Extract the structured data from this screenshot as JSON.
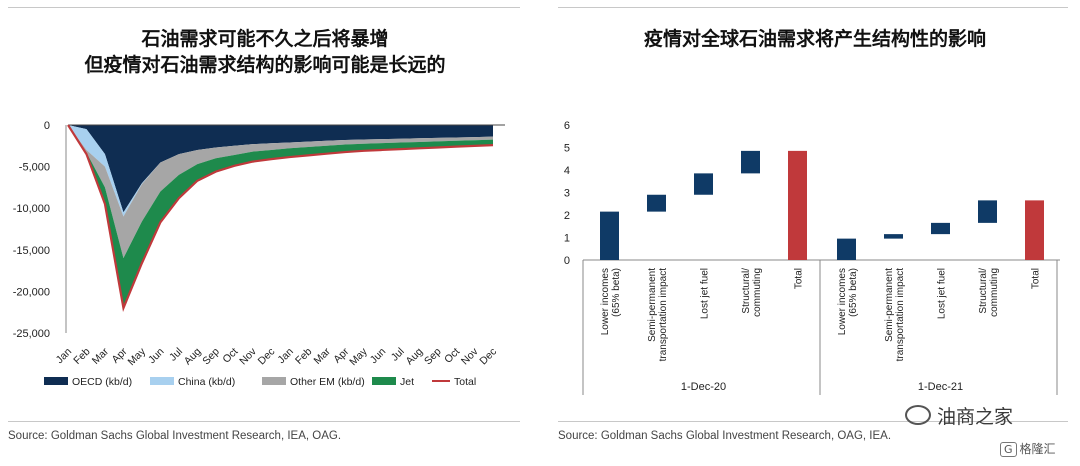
{
  "left": {
    "title_line1": "石油需求可能不久之后将暴增",
    "title_line2": "但疫情对石油需求结构的影响可能是长远的",
    "source": "Source: Goldman Sachs Global Investment Research, IEA, OAG."
  },
  "right": {
    "title": "疫情对全球石油需求将产生结构性的影响",
    "source": "Source: Goldman Sachs Global Investment Research, OAG, IEA."
  },
  "watermark": "油商之家",
  "badge": "格隆汇",
  "badge_icon": "G",
  "chart_data": [
    {
      "type": "area",
      "title": "",
      "stacked": true,
      "categories": [
        "Jan",
        "Feb",
        "Mar",
        "Apr",
        "May",
        "Jun",
        "Jul",
        "Aug",
        "Sep",
        "Oct",
        "Nov",
        "Dec",
        "Jan",
        "Feb",
        "Mar",
        "Apr",
        "May",
        "Jun",
        "Jul",
        "Aug",
        "Sep",
        "Oct",
        "Nov",
        "Dec"
      ],
      "series": [
        {
          "name": "OECD (kb/d)",
          "color": "#0f2d52",
          "values": [
            0,
            -500,
            -3500,
            -10500,
            -7000,
            -4500,
            -3500,
            -3000,
            -2700,
            -2500,
            -2300,
            -2200,
            -2100,
            -2000,
            -1900,
            -1800,
            -1750,
            -1700,
            -1650,
            -1600,
            -1550,
            -1500,
            -1450,
            -1400
          ]
        },
        {
          "name": "China (kb/d)",
          "color": "#a8d0ef",
          "values": [
            0,
            -2500,
            -1500,
            -500,
            -100,
            0,
            0,
            0,
            0,
            0,
            0,
            0,
            0,
            0,
            0,
            0,
            0,
            0,
            0,
            0,
            0,
            0,
            0,
            0
          ]
        },
        {
          "name": "Other EM (kb/d)",
          "color": "#a6a6a6",
          "values": [
            0,
            -300,
            -2500,
            -5000,
            -4500,
            -3500,
            -2500,
            -1700,
            -1300,
            -1100,
            -900,
            -800,
            -700,
            -650,
            -600,
            -550,
            -500,
            -480,
            -460,
            -440,
            -420,
            -400,
            -380,
            -360
          ]
        },
        {
          "name": "Jet",
          "color": "#1e8a4c",
          "values": [
            0,
            -200,
            -2000,
            -6000,
            -5000,
            -3700,
            -2800,
            -2000,
            -1600,
            -1300,
            -1200,
            -1100,
            -1050,
            -1000,
            -950,
            -900,
            -850,
            -820,
            -790,
            -760,
            -730,
            -700,
            -680,
            -660
          ]
        },
        {
          "name": "Total",
          "color": "#c0393b",
          "line": true,
          "values": [
            0,
            -3500,
            -9500,
            -22000,
            -16600,
            -11700,
            -8800,
            -6700,
            -5600,
            -4900,
            -4400,
            -4100,
            -3850,
            -3650,
            -3450,
            -3250,
            -3100,
            -3000,
            -2900,
            -2800,
            -2700,
            -2600,
            -2510,
            -2420
          ]
        }
      ],
      "yticks": [
        0,
        -5000,
        -10000,
        -15000,
        -20000,
        -25000
      ],
      "ytick_labels": [
        "0",
        "-5,000",
        "-10,000",
        "-15,000",
        "-20,000",
        "-25,000"
      ],
      "ylim": [
        -25000,
        0
      ],
      "legend": "bottom"
    },
    {
      "type": "bar",
      "subtype": "waterfall",
      "title": "",
      "groups": [
        {
          "label": "1-Dec-20",
          "bars": [
            {
              "label": "Lower incomes (65% beta)",
              "label_lines": [
                "Lower incomes",
                "(65% beta)"
              ],
              "low": 0,
              "high": 2.15,
              "color": "#0f3a66"
            },
            {
              "label": "Semi-permanent transportation impact",
              "label_lines": [
                "Semi-permanent",
                "transportation impact"
              ],
              "low": 2.15,
              "high": 2.9,
              "color": "#0f3a66"
            },
            {
              "label": "Lost jet fuel",
              "label_lines": [
                "Lost jet fuel"
              ],
              "low": 2.9,
              "high": 3.85,
              "color": "#0f3a66"
            },
            {
              "label": "Structural/ commuting",
              "label_lines": [
                "Structural/",
                "commuting"
              ],
              "low": 3.85,
              "high": 4.85,
              "color": "#0f3a66"
            },
            {
              "label": "Total",
              "label_lines": [
                "Total"
              ],
              "low": 0,
              "high": 4.85,
              "color": "#c0393b"
            }
          ]
        },
        {
          "label": "1-Dec-21",
          "bars": [
            {
              "label": "Lower incomes (65% beta)",
              "label_lines": [
                "Lower incomes",
                "(65% beta)"
              ],
              "low": 0,
              "high": 0.95,
              "color": "#0f3a66"
            },
            {
              "label": "Semi-permanent transportation impact",
              "label_lines": [
                "Semi-permanent",
                "transportation impact"
              ],
              "low": 0.95,
              "high": 1.15,
              "color": "#0f3a66"
            },
            {
              "label": "Lost jet fuel",
              "label_lines": [
                "Lost jet fuel"
              ],
              "low": 1.15,
              "high": 1.65,
              "color": "#0f3a66"
            },
            {
              "label": "Structural/ commuting",
              "label_lines": [
                "Structural/",
                "commuting"
              ],
              "low": 1.65,
              "high": 2.65,
              "color": "#0f3a66"
            },
            {
              "label": "Total",
              "label_lines": [
                "Total"
              ],
              "low": 0,
              "high": 2.65,
              "color": "#c0393b"
            }
          ]
        }
      ],
      "yticks": [
        0,
        1,
        2,
        3,
        4,
        5,
        6
      ],
      "ylim": [
        0,
        6
      ]
    }
  ]
}
